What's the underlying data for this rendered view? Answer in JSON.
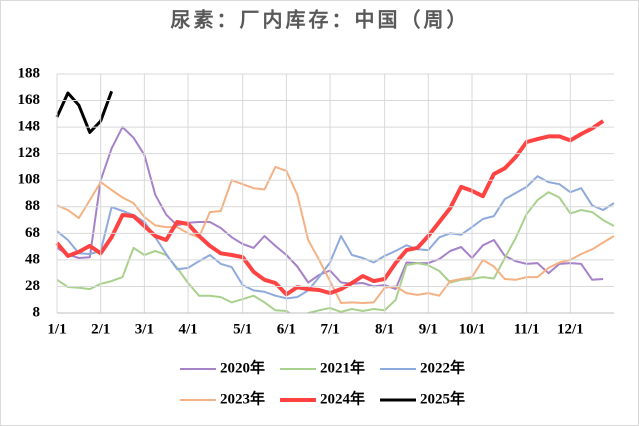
{
  "chart_data": {
    "type": "line",
    "title": "尿素：厂内库存：中国（周）",
    "categories": [
      "1/1",
      null,
      null,
      null,
      "2/1",
      null,
      null,
      null,
      "3/1",
      null,
      null,
      null,
      "4/1",
      null,
      null,
      null,
      null,
      "5/1",
      null,
      null,
      null,
      "6/1",
      null,
      null,
      null,
      "7/1",
      null,
      null,
      null,
      null,
      "8/1",
      null,
      null,
      null,
      "9/1",
      null,
      null,
      null,
      "10/1",
      null,
      null,
      null,
      null,
      "11/1",
      null,
      null,
      null,
      "12/1",
      null,
      null,
      null,
      null
    ],
    "series": [
      {
        "name": "2020年",
        "color": "#a682c8",
        "width": 2,
        "values": [
          57,
          52,
          49.4,
          50,
          108,
          132,
          148,
          140,
          127,
          97,
          82,
          74,
          76,
          76.5,
          76.5,
          72,
          65,
          60,
          57,
          66,
          58.5,
          51.7,
          43,
          31,
          36.6,
          40,
          31,
          30,
          30.6,
          28,
          29,
          26,
          46,
          45.6,
          45.6,
          48.6,
          54.7,
          57.7,
          49.4,
          59,
          63,
          51,
          47,
          45,
          45.6,
          38,
          45,
          45.6,
          45,
          33,
          33.6,
          null
        ]
      },
      {
        "name": "2021年",
        "color": "#a9d18e",
        "width": 2,
        "values": [
          33,
          27.6,
          27,
          26,
          30,
          32,
          35,
          57,
          51.7,
          54.7,
          51.7,
          42,
          30.6,
          21,
          21,
          20,
          16,
          18.5,
          21,
          16,
          10,
          9.5,
          4,
          8,
          10,
          11.8,
          8.8,
          11,
          9.5,
          11,
          10,
          17.8,
          44,
          45.6,
          44,
          39.6,
          31,
          33,
          33.6,
          35,
          34,
          49.4,
          64.5,
          82.5,
          93,
          99,
          95,
          83,
          85.6,
          84,
          78,
          73.5
        ]
      },
      {
        "name": "2022年",
        "color": "#8faadc",
        "width": 2,
        "values": [
          69.7,
          63,
          53,
          52.4,
          54.7,
          87.8,
          84.8,
          81.8,
          76.5,
          65,
          52.4,
          41,
          42,
          47,
          51.7,
          45,
          42.6,
          29,
          25,
          24,
          21,
          19,
          20,
          25,
          35,
          46,
          66,
          51.7,
          49.4,
          46,
          51,
          54.7,
          59,
          56,
          55.4,
          65,
          68,
          67,
          72.7,
          78.8,
          81,
          93.8,
          98.4,
          103,
          111,
          106.6,
          105,
          99,
          102,
          89,
          85.6,
          90.8
        ]
      },
      {
        "name": "2023年",
        "color": "#f4b183",
        "width": 2,
        "values": [
          89,
          85.6,
          79.5,
          93,
          106.6,
          100.6,
          95,
          90.8,
          80.3,
          74,
          72.7,
          72.7,
          68,
          65,
          84,
          84.8,
          108,
          105,
          102,
          101,
          118,
          115,
          97,
          63,
          48,
          32,
          15.5,
          16,
          15.5,
          16,
          27,
          28,
          23,
          21.6,
          23,
          21,
          32,
          33.6,
          35,
          48,
          43,
          33.6,
          33,
          35,
          35,
          42,
          46,
          48,
          52.4,
          56,
          61,
          66
        ]
      },
      {
        "name": "2024年",
        "color": "#ff4343",
        "width": 4,
        "values": [
          60.7,
          51,
          54,
          58.5,
          53,
          65,
          81.8,
          81,
          73.5,
          66,
          63,
          76.5,
          75,
          66,
          58.5,
          53,
          51.7,
          50,
          39,
          33,
          30.6,
          22,
          27.5,
          26,
          25.3,
          23,
          26,
          30.6,
          35.9,
          32,
          33.6,
          45.6,
          55.4,
          57,
          66,
          76.5,
          87,
          103,
          100,
          96,
          112.7,
          117,
          125.5,
          136.8,
          139,
          141,
          141,
          138,
          142.8,
          147,
          152.6,
          null
        ]
      },
      {
        "name": "2025年",
        "color": "#000000",
        "width": 3,
        "values": [
          155.6,
          173.7,
          164.6,
          144,
          152.6,
          175,
          null,
          null,
          null,
          null,
          null,
          null,
          null,
          null,
          null,
          null,
          null,
          null,
          null,
          null,
          null,
          null,
          null,
          null,
          null,
          null,
          null,
          null,
          null,
          null,
          null,
          null,
          null,
          null,
          null,
          null,
          null,
          null,
          null,
          null,
          null,
          null,
          null,
          null,
          null,
          null,
          null,
          null,
          null,
          null,
          null,
          null
        ]
      }
    ],
    "ylim": [
      8,
      188
    ],
    "yticks": [
      8,
      28,
      48,
      68,
      88,
      108,
      128,
      148,
      168,
      188
    ],
    "grid": true
  }
}
